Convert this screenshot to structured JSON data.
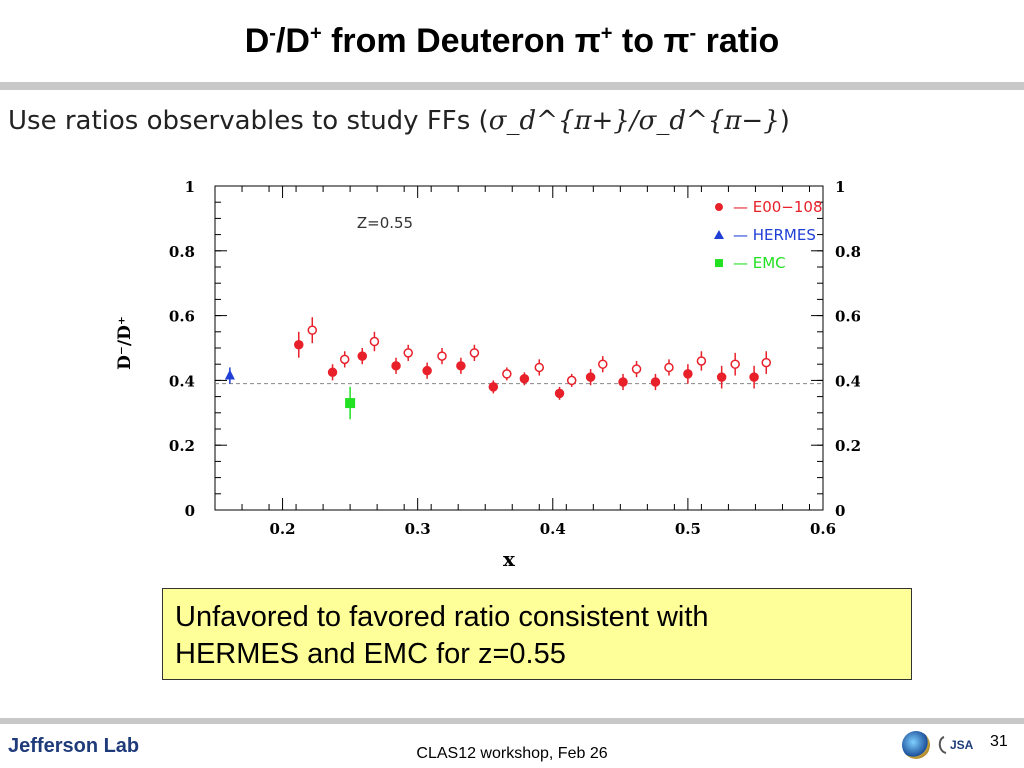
{
  "slide": {
    "title_parts": [
      "D",
      "-",
      "/D",
      "+",
      " from Deuteron ",
      "π",
      "+",
      " to ",
      "π",
      "-",
      " ratio"
    ],
    "subtitle_text": "Use ratios observables to study FFs (",
    "subtitle_math": "σ_d^{π+}/σ_d^{π−}",
    "subtitle_close": ")",
    "callout_line1": "Unfavored to favored ratio consistent with",
    "callout_line2": "HERMES and EMC for z=0.55",
    "footer": "CLAS12 workshop,  Feb 26",
    "page_number": "31",
    "logo_text": "Jefferson Lab",
    "jsa_logo_text": "JSA"
  },
  "chart_data": {
    "type": "scatter",
    "xlabel": "x",
    "ylabel": "D⁻/D⁺",
    "xlim": [
      0.15,
      0.6
    ],
    "ylim": [
      0,
      1
    ],
    "xticks": [
      "0.2",
      "0.3",
      "0.4",
      "0.5",
      "0.6"
    ],
    "yticks": [
      "0",
      "0.2",
      "0.4",
      "0.6",
      "0.8",
      "1"
    ],
    "annotation": "Z=0.55",
    "reference_line_y": 0.39,
    "legend_position": "top-right",
    "series": [
      {
        "name": "— E00−108",
        "color": "#e8202a",
        "marker": "circle",
        "points": [
          {
            "x": 0.212,
            "y": 0.51,
            "err": 0.04,
            "filled": true
          },
          {
            "x": 0.222,
            "y": 0.555,
            "err": 0.04,
            "filled": false
          },
          {
            "x": 0.237,
            "y": 0.425,
            "err": 0.025,
            "filled": true
          },
          {
            "x": 0.246,
            "y": 0.465,
            "err": 0.025,
            "filled": false
          },
          {
            "x": 0.259,
            "y": 0.475,
            "err": 0.025,
            "filled": true
          },
          {
            "x": 0.268,
            "y": 0.52,
            "err": 0.03,
            "filled": false
          },
          {
            "x": 0.284,
            "y": 0.445,
            "err": 0.025,
            "filled": true
          },
          {
            "x": 0.293,
            "y": 0.485,
            "err": 0.025,
            "filled": false
          },
          {
            "x": 0.307,
            "y": 0.43,
            "err": 0.025,
            "filled": true
          },
          {
            "x": 0.318,
            "y": 0.475,
            "err": 0.025,
            "filled": false
          },
          {
            "x": 0.332,
            "y": 0.445,
            "err": 0.025,
            "filled": true
          },
          {
            "x": 0.342,
            "y": 0.485,
            "err": 0.025,
            "filled": false
          },
          {
            "x": 0.356,
            "y": 0.38,
            "err": 0.02,
            "filled": true
          },
          {
            "x": 0.366,
            "y": 0.42,
            "err": 0.02,
            "filled": false
          },
          {
            "x": 0.379,
            "y": 0.405,
            "err": 0.02,
            "filled": true
          },
          {
            "x": 0.39,
            "y": 0.44,
            "err": 0.025,
            "filled": false
          },
          {
            "x": 0.405,
            "y": 0.36,
            "err": 0.02,
            "filled": true
          },
          {
            "x": 0.414,
            "y": 0.4,
            "err": 0.02,
            "filled": false
          },
          {
            "x": 0.428,
            "y": 0.41,
            "err": 0.025,
            "filled": true
          },
          {
            "x": 0.437,
            "y": 0.45,
            "err": 0.025,
            "filled": false
          },
          {
            "x": 0.452,
            "y": 0.395,
            "err": 0.025,
            "filled": true
          },
          {
            "x": 0.462,
            "y": 0.435,
            "err": 0.025,
            "filled": false
          },
          {
            "x": 0.476,
            "y": 0.395,
            "err": 0.025,
            "filled": true
          },
          {
            "x": 0.486,
            "y": 0.44,
            "err": 0.025,
            "filled": false
          },
          {
            "x": 0.5,
            "y": 0.42,
            "err": 0.03,
            "filled": true
          },
          {
            "x": 0.51,
            "y": 0.46,
            "err": 0.03,
            "filled": false
          },
          {
            "x": 0.525,
            "y": 0.41,
            "err": 0.035,
            "filled": true
          },
          {
            "x": 0.535,
            "y": 0.45,
            "err": 0.035,
            "filled": false
          },
          {
            "x": 0.549,
            "y": 0.41,
            "err": 0.035,
            "filled": true
          },
          {
            "x": 0.558,
            "y": 0.455,
            "err": 0.035,
            "filled": false
          }
        ]
      },
      {
        "name": "— HERMES",
        "color": "#1f3fd6",
        "marker": "triangle",
        "points": [
          {
            "x": 0.161,
            "y": 0.415,
            "err": 0.025,
            "filled": true
          }
        ]
      },
      {
        "name": "— EMC",
        "color": "#22e022",
        "marker": "square",
        "points": [
          {
            "x": 0.25,
            "y": 0.33,
            "err": 0.05,
            "filled": true
          }
        ]
      }
    ]
  }
}
